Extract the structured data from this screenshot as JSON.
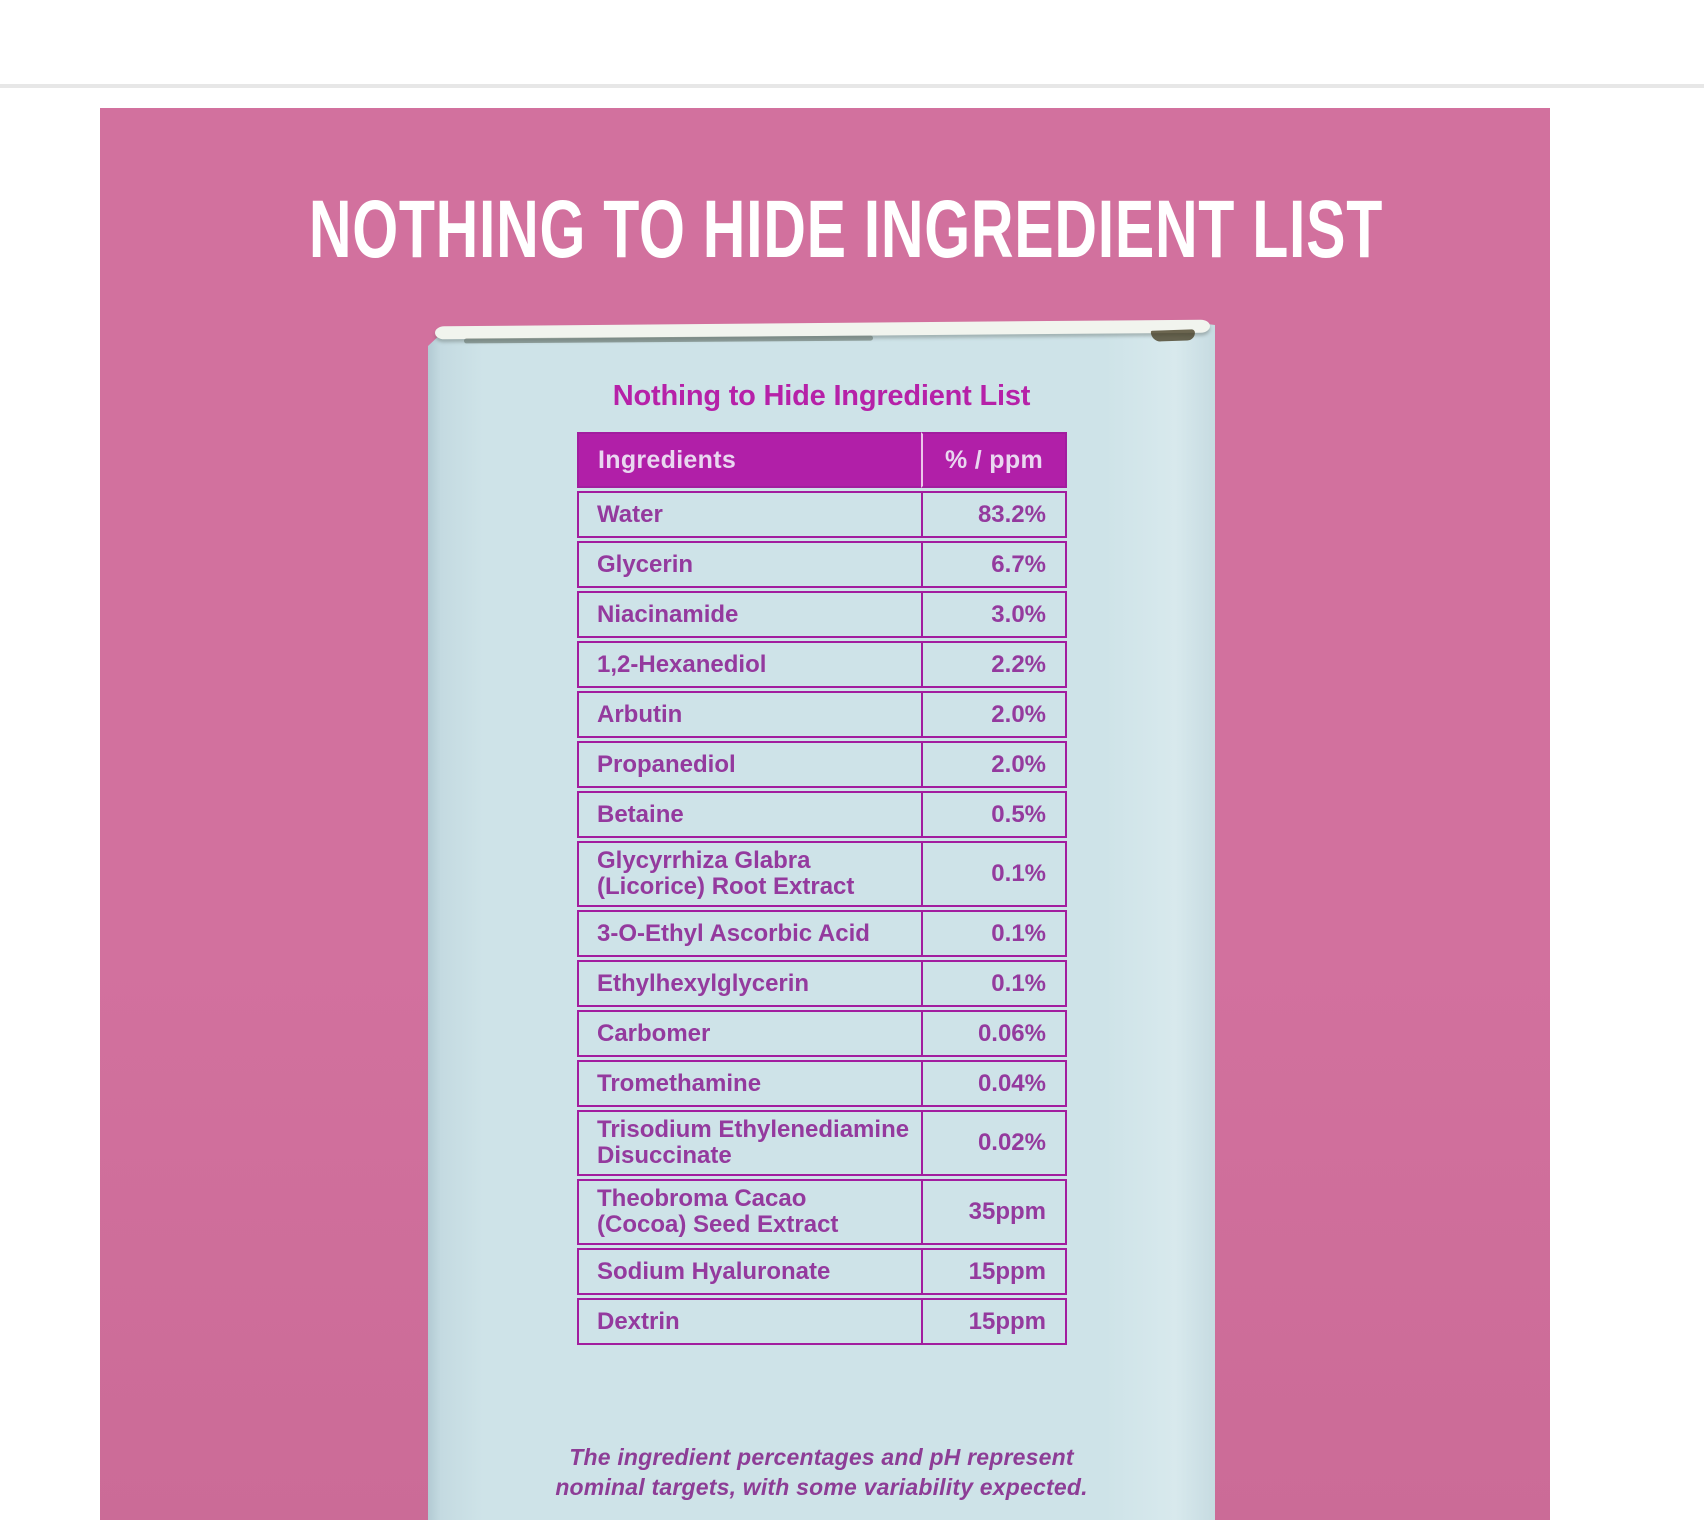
{
  "banner": {
    "title": "NOTHING TO HIDE INGREDIENT LIST"
  },
  "box": {
    "title": "Nothing to Hide Ingredient List"
  },
  "table": {
    "columns": [
      "Ingredients",
      "% / ppm"
    ],
    "rows": [
      {
        "name": "Water",
        "value": "83.2%"
      },
      {
        "name": "Glycerin",
        "value": "6.7%"
      },
      {
        "name": "Niacinamide",
        "value": "3.0%"
      },
      {
        "name": "1,2-Hexanediol",
        "value": "2.2%"
      },
      {
        "name": "Arbutin",
        "value": "2.0%"
      },
      {
        "name": "Propanediol",
        "value": "2.0%"
      },
      {
        "name": "Betaine",
        "value": "0.5%"
      },
      {
        "name": "Glycyrrhiza Glabra\n(Licorice) Root Extract",
        "value": "0.1%"
      },
      {
        "name": "3-O-Ethyl Ascorbic Acid",
        "value": "0.1%"
      },
      {
        "name": "Ethylhexylglycerin",
        "value": "0.1%"
      },
      {
        "name": "Carbomer",
        "value": "0.06%"
      },
      {
        "name": "Tromethamine",
        "value": "0.04%"
      },
      {
        "name": "Trisodium Ethylenediamine\nDisuccinate",
        "value": "0.02%"
      },
      {
        "name": "Theobroma Cacao\n(Cocoa) Seed Extract",
        "value": "35ppm"
      },
      {
        "name": "Sodium Hyaluronate",
        "value": "15ppm"
      },
      {
        "name": "Dextrin",
        "value": "15ppm"
      }
    ]
  },
  "footnote": {
    "line1": "The ingredient percentages and pH represent",
    "line2": "nominal targets, with some variability expected."
  },
  "colors": {
    "pink_background": "#d2719e",
    "box_surface": "#cee3e8",
    "table_accent": "#b11fa8",
    "table_border": "#a21d9f",
    "ingredient_text": "#943a9e",
    "banner_text": "#ffffff"
  }
}
